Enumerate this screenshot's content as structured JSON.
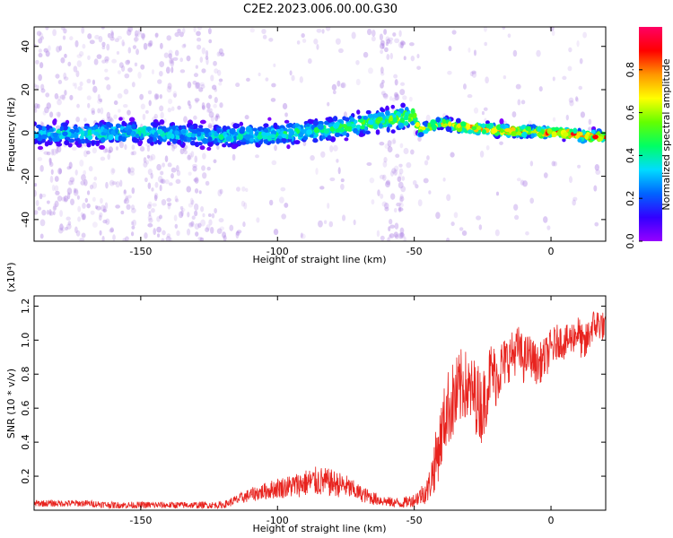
{
  "title": "C2E2.2023.006.00.00.G30",
  "colors": {
    "snr_line": "#e8231e",
    "spectrogram_scatter": "#b48ce6",
    "spectrogram_core": "#5a00e6"
  },
  "chart_data": [
    {
      "type": "heatmap",
      "xlabel": "Height of straight line (km)",
      "ylabel": "Frequency (Hz)",
      "xlim": [
        -189,
        20
      ],
      "ylim": [
        -50,
        49
      ],
      "x_ticks": [
        -150,
        -100,
        -50,
        0
      ],
      "x_tick_labels": [
        "-150",
        "-100",
        "-50",
        "0"
      ],
      "y_ticks": [
        -40,
        -20,
        0,
        20,
        40
      ],
      "y_tick_labels": [
        "-40",
        "-20",
        "0",
        "20",
        "40"
      ],
      "colorbar": {
        "label": "Normalized spectral amplitude",
        "range": [
          0,
          1
        ],
        "ticks": [
          0.0,
          0.2,
          0.4,
          0.6,
          0.8
        ],
        "tick_labels": [
          "0.0",
          "0.2",
          "0.4",
          "0.6",
          "0.8"
        ],
        "colormap": [
          "#9600ff",
          "#3200ff",
          "#0064ff",
          "#00dcff",
          "#00ff64",
          "#64ff00",
          "#ffff00",
          "#ff9600",
          "#ff0000",
          "#ff0064"
        ]
      },
      "ridge": [
        {
          "x": -189,
          "f": 0.0,
          "amp": 0.35
        },
        {
          "x": -170,
          "f": -0.5,
          "amp": 0.4
        },
        {
          "x": -150,
          "f": 0.5,
          "amp": 0.4
        },
        {
          "x": -130,
          "f": -1.0,
          "amp": 0.35
        },
        {
          "x": -120,
          "f": -1.5,
          "amp": 0.4
        },
        {
          "x": -100,
          "f": -0.5,
          "amp": 0.45
        },
        {
          "x": -85,
          "f": 1.0,
          "amp": 0.45
        },
        {
          "x": -75,
          "f": 3.0,
          "amp": 0.5
        },
        {
          "x": -65,
          "f": 5.0,
          "amp": 0.55
        },
        {
          "x": -55,
          "f": 7.0,
          "amp": 0.6
        },
        {
          "x": -50,
          "f": 8.0,
          "amp": 0.6
        },
        {
          "x": -48,
          "f": 1.0,
          "amp": 0.65
        },
        {
          "x": -40,
          "f": 5.0,
          "amp": 0.7
        },
        {
          "x": -35,
          "f": 3.0,
          "amp": 0.75
        },
        {
          "x": -25,
          "f": 2.0,
          "amp": 0.85
        },
        {
          "x": -15,
          "f": 1.0,
          "amp": 0.85
        },
        {
          "x": -5,
          "f": 0.5,
          "amp": 0.8
        },
        {
          "x": 5,
          "f": 0.0,
          "amp": 0.95
        },
        {
          "x": 12,
          "f": -1.5,
          "amp": 0.85
        },
        {
          "x": 20,
          "f": -1.5,
          "amp": 0.85
        }
      ]
    },
    {
      "type": "line",
      "xlabel": "Height of straight line (km)",
      "ylabel": "SNR (10 * v/v)",
      "y_scale_label": "(x10⁴)",
      "xlim": [
        -189,
        20
      ],
      "ylim": [
        0,
        1.26
      ],
      "x_ticks": [
        -150,
        -100,
        -50,
        0
      ],
      "x_tick_labels": [
        "-150",
        "-100",
        "-50",
        "0"
      ],
      "y_ticks": [
        0.2,
        0.4,
        0.6,
        0.8,
        1.0,
        1.2
      ],
      "y_tick_labels": [
        "0.2",
        "0.4",
        "0.6",
        "0.8",
        "1.0",
        "1.2"
      ],
      "series": [
        {
          "x": [
            -189,
            -180,
            -170,
            -160,
            -150,
            -140,
            -130,
            -120,
            -115,
            -110,
            -105,
            -100,
            -95,
            -90,
            -85,
            -80,
            -75,
            -70,
            -65,
            -60,
            -55,
            -50,
            -45,
            -42,
            -40,
            -38,
            -35,
            -32,
            -30,
            -28,
            -25,
            -22,
            -20,
            -18,
            -15,
            -12,
            -10,
            -8,
            -5,
            -2,
            0,
            3,
            5,
            8,
            10,
            12,
            15,
            18,
            20
          ],
          "y": [
            0.04,
            0.04,
            0.04,
            0.03,
            0.03,
            0.03,
            0.03,
            0.03,
            0.06,
            0.09,
            0.11,
            0.13,
            0.14,
            0.16,
            0.17,
            0.16,
            0.14,
            0.1,
            0.07,
            0.05,
            0.04,
            0.06,
            0.12,
            0.3,
            0.45,
            0.6,
            0.65,
            0.75,
            0.7,
            0.68,
            0.6,
            0.82,
            0.78,
            0.85,
            0.9,
            0.95,
            0.88,
            0.92,
            0.85,
            0.9,
            0.95,
            1.0,
            0.98,
            1.02,
            1.05,
            0.95,
            1.08,
            1.1,
            1.06
          ],
          "noise": [
            0.02,
            0.02,
            0.02,
            0.02,
            0.02,
            0.02,
            0.02,
            0.02,
            0.03,
            0.04,
            0.05,
            0.06,
            0.07,
            0.08,
            0.09,
            0.08,
            0.07,
            0.05,
            0.04,
            0.03,
            0.03,
            0.04,
            0.08,
            0.18,
            0.2,
            0.22,
            0.25,
            0.22,
            0.2,
            0.22,
            0.22,
            0.18,
            0.18,
            0.16,
            0.14,
            0.14,
            0.14,
            0.12,
            0.12,
            0.12,
            0.12,
            0.1,
            0.1,
            0.1,
            0.1,
            0.12,
            0.1,
            0.1,
            0.08
          ]
        }
      ]
    }
  ]
}
